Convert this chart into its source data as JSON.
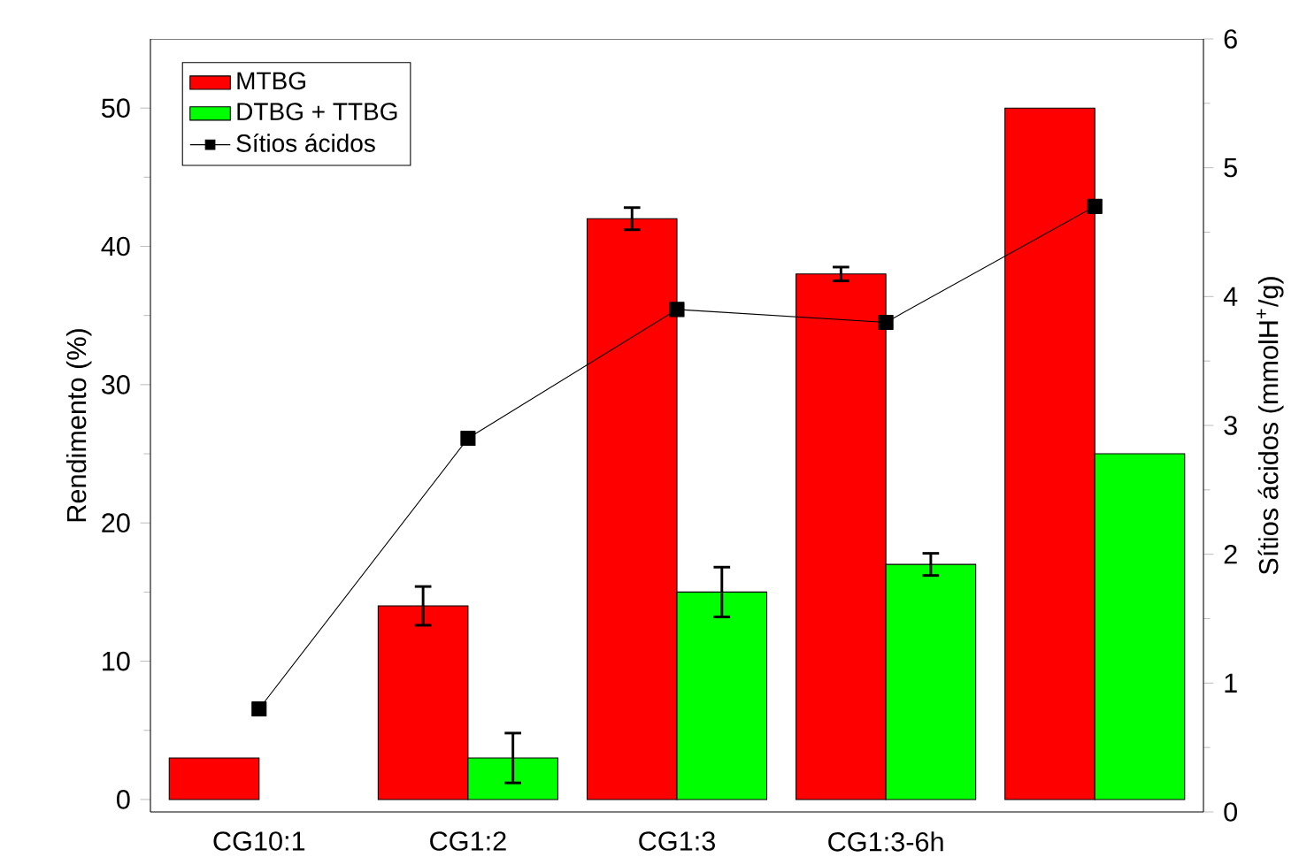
{
  "chart_data": {
    "type": "bar",
    "categories": [
      "CG10:1",
      "CG1:2",
      "CG1:3",
      "CG1:3-6h",
      null
    ],
    "series": [
      {
        "name": "MTBG",
        "color": "#ff0000",
        "values": [
          3,
          14,
          42,
          38,
          50
        ],
        "errors": [
          null,
          1.4,
          0.8,
          0.5,
          null
        ]
      },
      {
        "name": "DTBG + TTBG",
        "color": "#00ff00",
        "values": [
          0,
          3,
          15,
          17,
          25
        ],
        "errors": [
          null,
          1.8,
          1.8,
          0.8,
          null
        ]
      },
      {
        "name": "Sítios ácidos",
        "type": "line",
        "axis": "y2",
        "color": "#000000",
        "marker": "square",
        "line_style": "solid",
        "values": [
          0.8,
          2.9,
          3.9,
          3.8,
          4.7
        ]
      }
    ],
    "ylabel": "Rendimento (%)",
    "y2label": "Sítios ácidos (mmolH$^{+}$/g)",
    "ylim": [
      -0.9,
      55
    ],
    "yticks": [
      0,
      10,
      20,
      30,
      40,
      50
    ],
    "y2lim": [
      0,
      6
    ],
    "y2ticks": [
      0,
      1,
      2,
      3,
      4,
      5,
      6
    ],
    "legend": "top left"
  }
}
